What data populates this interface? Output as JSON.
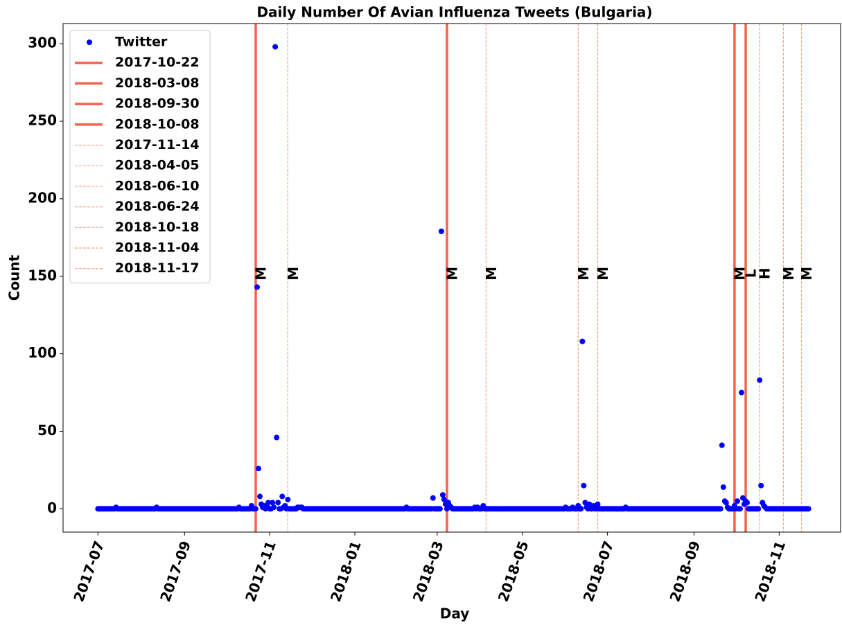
{
  "chart_data": {
    "type": "scatter",
    "title": "Daily Number Of Avian Influenza Tweets (Bulgaria)",
    "xlabel": "Day",
    "ylabel": "Count",
    "x": [
      "2017-07-01",
      "2017-07-02",
      "2017-07-03",
      "2017-07-04",
      "2017-07-05",
      "2017-07-06",
      "2017-07-07",
      "2017-07-08",
      "2017-07-09",
      "2017-07-10",
      "2017-07-11",
      "2017-07-12",
      "2017-07-13",
      "2017-07-14",
      "2017-07-15",
      "2017-07-16",
      "2017-07-17",
      "2017-07-18",
      "2017-07-19",
      "2017-07-20",
      "2017-07-21",
      "2017-07-22",
      "2017-07-23",
      "2017-07-24",
      "2017-07-25",
      "2017-07-26",
      "2017-07-27",
      "2017-07-28",
      "2017-07-29",
      "2017-07-30",
      "2017-07-31",
      "2017-08-01",
      "2017-08-02",
      "2017-08-03",
      "2017-08-04",
      "2017-08-05",
      "2017-08-06",
      "2017-08-07",
      "2017-08-08",
      "2017-08-09",
      "2017-08-10",
      "2017-08-11",
      "2017-08-12",
      "2017-08-13",
      "2017-08-14",
      "2017-08-15",
      "2017-08-16",
      "2017-08-17",
      "2017-08-18",
      "2017-08-19",
      "2017-08-20",
      "2017-08-21",
      "2017-08-22",
      "2017-08-23",
      "2017-08-24",
      "2017-08-25",
      "2017-08-26",
      "2017-08-27",
      "2017-08-28",
      "2017-08-29",
      "2017-08-30",
      "2017-08-31",
      "2017-09-01",
      "2017-09-02",
      "2017-09-03",
      "2017-09-04",
      "2017-09-05",
      "2017-09-06",
      "2017-09-07",
      "2017-09-08",
      "2017-09-09",
      "2017-09-10",
      "2017-09-11",
      "2017-09-12",
      "2017-09-13",
      "2017-09-14",
      "2017-09-15",
      "2017-09-16",
      "2017-09-17",
      "2017-09-18",
      "2017-09-19",
      "2017-09-20",
      "2017-09-21",
      "2017-09-22",
      "2017-09-23",
      "2017-09-24",
      "2017-09-25",
      "2017-09-26",
      "2017-09-27",
      "2017-09-28",
      "2017-09-29",
      "2017-09-30",
      "2017-10-01",
      "2017-10-02",
      "2017-10-03",
      "2017-10-04",
      "2017-10-05",
      "2017-10-06",
      "2017-10-07",
      "2017-10-08",
      "2017-10-09",
      "2017-10-10",
      "2017-10-11",
      "2017-10-12",
      "2017-10-13",
      "2017-10-14",
      "2017-10-15",
      "2017-10-16",
      "2017-10-17",
      "2017-10-18",
      "2017-10-19",
      "2017-10-20",
      "2017-10-21",
      "2017-10-22",
      "2017-10-23",
      "2017-10-24",
      "2017-10-25",
      "2017-10-26",
      "2017-10-27",
      "2017-10-28",
      "2017-10-29",
      "2017-10-30",
      "2017-10-31",
      "2017-11-01",
      "2017-11-02",
      "2017-11-03",
      "2017-11-04",
      "2017-11-05",
      "2017-11-06",
      "2017-11-07",
      "2017-11-08",
      "2017-11-09",
      "2017-11-10",
      "2017-11-11",
      "2017-11-12",
      "2017-11-13",
      "2017-11-14",
      "2017-11-15",
      "2017-11-16",
      "2017-11-17",
      "2017-11-18",
      "2017-11-19",
      "2017-11-20",
      "2017-11-21",
      "2017-11-22",
      "2017-11-23",
      "2017-11-24",
      "2017-11-25",
      "2017-11-26",
      "2017-11-27",
      "2017-11-28",
      "2017-11-29",
      "2017-11-30",
      "2017-12-01",
      "2017-12-02",
      "2017-12-03",
      "2017-12-04",
      "2017-12-05",
      "2017-12-06",
      "2017-12-07",
      "2017-12-08",
      "2017-12-09",
      "2017-12-10",
      "2017-12-11",
      "2017-12-12",
      "2017-12-13",
      "2017-12-14",
      "2017-12-15",
      "2017-12-16",
      "2017-12-17",
      "2017-12-18",
      "2017-12-19",
      "2017-12-20",
      "2017-12-21",
      "2017-12-22",
      "2017-12-23",
      "2017-12-24",
      "2017-12-25",
      "2017-12-26",
      "2017-12-27",
      "2017-12-28",
      "2017-12-29",
      "2017-12-30",
      "2017-12-31",
      "2018-01-01",
      "2018-01-02",
      "2018-01-03",
      "2018-01-04",
      "2018-01-05",
      "2018-01-06",
      "2018-01-07",
      "2018-01-08",
      "2018-01-09",
      "2018-01-10",
      "2018-01-11",
      "2018-01-12",
      "2018-01-13",
      "2018-01-14",
      "2018-01-15",
      "2018-01-16",
      "2018-01-17",
      "2018-01-18",
      "2018-01-19",
      "2018-01-20",
      "2018-01-21",
      "2018-01-22",
      "2018-01-23",
      "2018-01-24",
      "2018-01-25",
      "2018-01-26",
      "2018-01-27",
      "2018-01-28",
      "2018-01-29",
      "2018-01-30",
      "2018-01-31",
      "2018-02-01",
      "2018-02-02",
      "2018-02-03",
      "2018-02-04",
      "2018-02-05",
      "2018-02-06",
      "2018-02-07",
      "2018-02-08",
      "2018-02-09",
      "2018-02-10",
      "2018-02-11",
      "2018-02-12",
      "2018-02-13",
      "2018-02-14",
      "2018-02-15",
      "2018-02-16",
      "2018-02-17",
      "2018-02-18",
      "2018-02-19",
      "2018-02-20",
      "2018-02-21",
      "2018-02-22",
      "2018-02-23",
      "2018-02-24",
      "2018-02-25",
      "2018-02-26",
      "2018-02-27",
      "2018-02-28",
      "2018-03-01",
      "2018-03-02",
      "2018-03-03",
      "2018-03-04",
      "2018-03-05",
      "2018-03-06",
      "2018-03-07",
      "2018-03-08",
      "2018-03-09",
      "2018-03-10",
      "2018-03-11",
      "2018-03-12",
      "2018-03-13",
      "2018-03-14",
      "2018-03-15",
      "2018-03-16",
      "2018-03-17",
      "2018-03-18",
      "2018-03-19",
      "2018-03-20",
      "2018-03-21",
      "2018-03-22",
      "2018-03-23",
      "2018-03-24",
      "2018-03-25",
      "2018-03-26",
      "2018-03-27",
      "2018-03-28",
      "2018-03-29",
      "2018-03-30",
      "2018-03-31",
      "2018-04-01",
      "2018-04-02",
      "2018-04-03",
      "2018-04-04",
      "2018-04-05",
      "2018-04-06",
      "2018-04-07",
      "2018-04-08",
      "2018-04-09",
      "2018-04-10",
      "2018-04-11",
      "2018-04-12",
      "2018-04-13",
      "2018-04-14",
      "2018-04-15",
      "2018-04-16",
      "2018-04-17",
      "2018-04-18",
      "2018-04-19",
      "2018-04-20",
      "2018-04-21",
      "2018-04-22",
      "2018-04-23",
      "2018-04-24",
      "2018-04-25",
      "2018-04-26",
      "2018-04-27",
      "2018-04-28",
      "2018-04-29",
      "2018-04-30",
      "2018-05-01",
      "2018-05-02",
      "2018-05-03",
      "2018-05-04",
      "2018-05-05",
      "2018-05-06",
      "2018-05-07",
      "2018-05-08",
      "2018-05-09",
      "2018-05-10",
      "2018-05-11",
      "2018-05-12",
      "2018-05-13",
      "2018-05-14",
      "2018-05-15",
      "2018-05-16",
      "2018-05-17",
      "2018-05-18",
      "2018-05-19",
      "2018-05-20",
      "2018-05-21",
      "2018-05-22",
      "2018-05-23",
      "2018-05-24",
      "2018-05-25",
      "2018-05-26",
      "2018-05-27",
      "2018-05-28",
      "2018-05-29",
      "2018-05-30",
      "2018-05-31",
      "2018-06-01",
      "2018-06-02",
      "2018-06-03",
      "2018-06-04",
      "2018-06-05",
      "2018-06-06",
      "2018-06-07",
      "2018-06-08",
      "2018-06-09",
      "2018-06-10",
      "2018-06-11",
      "2018-06-12",
      "2018-06-13",
      "2018-06-14",
      "2018-06-15",
      "2018-06-16",
      "2018-06-17",
      "2018-06-18",
      "2018-06-19",
      "2018-06-20",
      "2018-06-21",
      "2018-06-22",
      "2018-06-23",
      "2018-06-24",
      "2018-06-25",
      "2018-06-26",
      "2018-06-27",
      "2018-06-28",
      "2018-06-29",
      "2018-06-30",
      "2018-07-01",
      "2018-07-02",
      "2018-07-03",
      "2018-07-04",
      "2018-07-05",
      "2018-07-06",
      "2018-07-07",
      "2018-07-08",
      "2018-07-09",
      "2018-07-10",
      "2018-07-11",
      "2018-07-12",
      "2018-07-13",
      "2018-07-14",
      "2018-07-15",
      "2018-07-16",
      "2018-07-17",
      "2018-07-18",
      "2018-07-19",
      "2018-07-20",
      "2018-07-21",
      "2018-07-22",
      "2018-07-23",
      "2018-07-24",
      "2018-07-25",
      "2018-07-26",
      "2018-07-27",
      "2018-07-28",
      "2018-07-29",
      "2018-07-30",
      "2018-07-31",
      "2018-08-01",
      "2018-08-02",
      "2018-08-03",
      "2018-08-04",
      "2018-08-05",
      "2018-08-06",
      "2018-08-07",
      "2018-08-08",
      "2018-08-09",
      "2018-08-10",
      "2018-08-11",
      "2018-08-12",
      "2018-08-13",
      "2018-08-14",
      "2018-08-15",
      "2018-08-16",
      "2018-08-17",
      "2018-08-18",
      "2018-08-19",
      "2018-08-20",
      "2018-08-21",
      "2018-08-22",
      "2018-08-23",
      "2018-08-24",
      "2018-08-25",
      "2018-08-26",
      "2018-08-27",
      "2018-08-28",
      "2018-08-29",
      "2018-08-30",
      "2018-08-31",
      "2018-09-01",
      "2018-09-02",
      "2018-09-03",
      "2018-09-04",
      "2018-09-05",
      "2018-09-06",
      "2018-09-07",
      "2018-09-08",
      "2018-09-09",
      "2018-09-10",
      "2018-09-11",
      "2018-09-12",
      "2018-09-13",
      "2018-09-14",
      "2018-09-15",
      "2018-09-16",
      "2018-09-17",
      "2018-09-18",
      "2018-09-19",
      "2018-09-20",
      "2018-09-21",
      "2018-09-22",
      "2018-09-23",
      "2018-09-24",
      "2018-09-25",
      "2018-09-26",
      "2018-09-27",
      "2018-09-28",
      "2018-09-29",
      "2018-09-30",
      "2018-10-01",
      "2018-10-02",
      "2018-10-03",
      "2018-10-04",
      "2018-10-05",
      "2018-10-06",
      "2018-10-07",
      "2018-10-08",
      "2018-10-09",
      "2018-10-10",
      "2018-10-11",
      "2018-10-12",
      "2018-10-13",
      "2018-10-14",
      "2018-10-15",
      "2018-10-16",
      "2018-10-17",
      "2018-10-18",
      "2018-10-19",
      "2018-10-20",
      "2018-10-21",
      "2018-10-22",
      "2018-10-23",
      "2018-10-24",
      "2018-10-25",
      "2018-10-26",
      "2018-10-27",
      "2018-10-28",
      "2018-10-29",
      "2018-10-30",
      "2018-10-31",
      "2018-11-01",
      "2018-11-02",
      "2018-11-03",
      "2018-11-04",
      "2018-11-05",
      "2018-11-06",
      "2018-11-07",
      "2018-11-08",
      "2018-11-09",
      "2018-11-10",
      "2018-11-11",
      "2018-11-12",
      "2018-11-13",
      "2018-11-14",
      "2018-11-15",
      "2018-11-16",
      "2018-11-17",
      "2018-11-18",
      "2018-11-19",
      "2018-11-20",
      "2018-11-21",
      "2018-11-22"
    ],
    "series": [
      {
        "name": "Twitter",
        "color": "#0000ff",
        "values": [
          0,
          0,
          0,
          0,
          0,
          0,
          0,
          0,
          0,
          0,
          0,
          0,
          0,
          1,
          0,
          0,
          0,
          0,
          0,
          0,
          0,
          0,
          0,
          0,
          0,
          0,
          0,
          0,
          0,
          0,
          0,
          0,
          0,
          0,
          0,
          0,
          0,
          0,
          0,
          0,
          0,
          0,
          1,
          0,
          0,
          0,
          0,
          0,
          0,
          0,
          0,
          0,
          0,
          0,
          0,
          0,
          0,
          0,
          0,
          0,
          0,
          0,
          0,
          0,
          0,
          0,
          0,
          0,
          0,
          0,
          0,
          0,
          0,
          0,
          0,
          0,
          0,
          0,
          0,
          0,
          0,
          0,
          0,
          0,
          0,
          0,
          0,
          0,
          0,
          0,
          0,
          0,
          0,
          0,
          0,
          0,
          0,
          0,
          0,
          0,
          0,
          1,
          0,
          0,
          0,
          0,
          0,
          0,
          0,
          0,
          2,
          0,
          0,
          0,
          143,
          26,
          8,
          3,
          1,
          2,
          0,
          2,
          4,
          0,
          0,
          4,
          1,
          298,
          46,
          4,
          0,
          0,
          8,
          1,
          2,
          0,
          6,
          0,
          0,
          0,
          0,
          0,
          0,
          1,
          1,
          1,
          1,
          0,
          0,
          0,
          0,
          0,
          0,
          0,
          0,
          0,
          0,
          0,
          0,
          0,
          0,
          0,
          0,
          0,
          0,
          0,
          0,
          0,
          0,
          0,
          0,
          0,
          0,
          0,
          0,
          0,
          0,
          0,
          0,
          0,
          0,
          0,
          0,
          0,
          0,
          0,
          0,
          0,
          0,
          0,
          0,
          0,
          0,
          0,
          0,
          0,
          0,
          0,
          0,
          0,
          0,
          0,
          0,
          0,
          0,
          0,
          0,
          0,
          0,
          0,
          0,
          0,
          0,
          0,
          0,
          0,
          0,
          0,
          0,
          0,
          0,
          1,
          0,
          0,
          0,
          0,
          0,
          0,
          0,
          0,
          0,
          0,
          0,
          0,
          0,
          0,
          0,
          0,
          0,
          0,
          7,
          0,
          0,
          0,
          0,
          0,
          179,
          9,
          6,
          3,
          0,
          4,
          2,
          1,
          0,
          0,
          0,
          0,
          0,
          0,
          0,
          0,
          0,
          0,
          0,
          0,
          0,
          0,
          0,
          0,
          1,
          0,
          1,
          0,
          0,
          0,
          2,
          0,
          0,
          0,
          0,
          0,
          0,
          0,
          0,
          0,
          0,
          0,
          0,
          0,
          0,
          0,
          0,
          0,
          0,
          0,
          0,
          0,
          0,
          0,
          0,
          0,
          0,
          0,
          0,
          0,
          0,
          0,
          0,
          0,
          0,
          0,
          0,
          0,
          0,
          0,
          0,
          0,
          0,
          0,
          0,
          0,
          0,
          0,
          0,
          0,
          0,
          0,
          0,
          0,
          0,
          0,
          0,
          0,
          0,
          1,
          0,
          0,
          0,
          0,
          1,
          0,
          0,
          0,
          2,
          0,
          0,
          108,
          15,
          4,
          1,
          0,
          3,
          0,
          0,
          2,
          0,
          0,
          3,
          0,
          0,
          0,
          0,
          0,
          0,
          0,
          0,
          0,
          0,
          0,
          0,
          0,
          0,
          0,
          0,
          0,
          0,
          0,
          1,
          0,
          0,
          0,
          0,
          0,
          0,
          0,
          0,
          0,
          0,
          0,
          0,
          0,
          0,
          0,
          0,
          0,
          0,
          0,
          0,
          0,
          0,
          0,
          0,
          0,
          0,
          0,
          0,
          0,
          0,
          0,
          0,
          0,
          0,
          0,
          0,
          0,
          0,
          0,
          0,
          0,
          0,
          0,
          0,
          0,
          0,
          0,
          0,
          0,
          0,
          0,
          0,
          0,
          0,
          0,
          0,
          0,
          0,
          0,
          0,
          0,
          0,
          0,
          0,
          0,
          0,
          0,
          0,
          41,
          14,
          5,
          4,
          1,
          0,
          0,
          0,
          0,
          2,
          0,
          5,
          0,
          0,
          75,
          7,
          3,
          5,
          4,
          0,
          0,
          0,
          0,
          0,
          0,
          0,
          0,
          83,
          15,
          4,
          2,
          1,
          0,
          0,
          0,
          0,
          0,
          0,
          0,
          0,
          0,
          0,
          0,
          0,
          0,
          0,
          0,
          0,
          0,
          0,
          0,
          0,
          0,
          0,
          0,
          0,
          0,
          0,
          0,
          0,
          0,
          0,
          0
        ]
      }
    ],
    "vlines": [
      {
        "x": "2017-10-22",
        "style": "solid",
        "color": "#f4634c",
        "tag": "M"
      },
      {
        "x": "2018-03-08",
        "style": "solid",
        "color": "#f4634c",
        "tag": "M"
      },
      {
        "x": "2018-09-30",
        "style": "solid",
        "color": "#f4634c",
        "tag": "M"
      },
      {
        "x": "2018-10-08",
        "style": "solid",
        "color": "#f4634c",
        "tag": "L"
      },
      {
        "x": "2017-11-14",
        "style": "dashed",
        "color": "#f8a27f",
        "tag": "M"
      },
      {
        "x": "2018-04-05",
        "style": "dashed",
        "color": "#f8a27f",
        "tag": "M"
      },
      {
        "x": "2018-06-10",
        "style": "dashed",
        "color": "#f8a27f",
        "tag": "M"
      },
      {
        "x": "2018-06-24",
        "style": "dashed",
        "color": "#f8a27f",
        "tag": "M"
      },
      {
        "x": "2018-10-18",
        "style": "dashed",
        "color": "#f8a27f",
        "tag": "H"
      },
      {
        "x": "2018-11-04",
        "style": "dashed",
        "color": "#f8a27f",
        "tag": "M"
      },
      {
        "x": "2018-11-17",
        "style": "dashed",
        "color": "#f8a27f",
        "tag": "M"
      }
    ],
    "xlim": [
      "2017-06-06",
      "2018-12-15"
    ],
    "xticks": [
      {
        "value": "2017-07-01",
        "label": "2017-07"
      },
      {
        "value": "2017-09-01",
        "label": "2017-09"
      },
      {
        "value": "2017-11-01",
        "label": "2017-11"
      },
      {
        "value": "2018-01-01",
        "label": "2018-01"
      },
      {
        "value": "2018-03-01",
        "label": "2018-03"
      },
      {
        "value": "2018-05-01",
        "label": "2018-05"
      },
      {
        "value": "2018-07-01",
        "label": "2018-07"
      },
      {
        "value": "2018-09-01",
        "label": "2018-09"
      },
      {
        "value": "2018-11-01",
        "label": "2018-11"
      }
    ],
    "ylim": [
      -15,
      313
    ],
    "yticks": [
      0,
      50,
      100,
      150,
      200,
      250,
      300
    ],
    "legend": "upper left"
  }
}
